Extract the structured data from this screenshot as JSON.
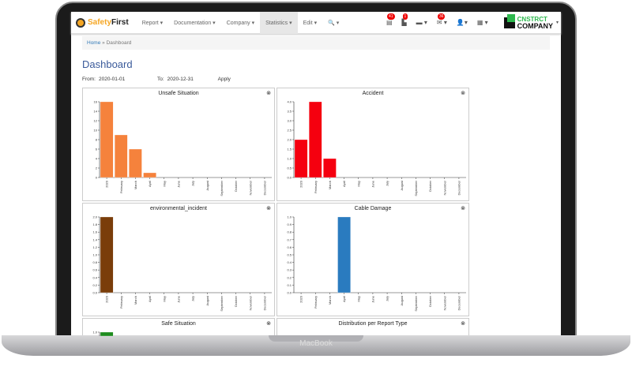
{
  "device_label": "MacBook",
  "logo": {
    "part1": "Safety",
    "part2": "First"
  },
  "nav": [
    {
      "label": "Report ▾"
    },
    {
      "label": "Documentation ▾"
    },
    {
      "label": "Company ▾"
    },
    {
      "label": "Statistics ▾",
      "active": true
    },
    {
      "label": "Edit ▾"
    },
    {
      "label": "🔍 ▾"
    }
  ],
  "icons": [
    {
      "name": "list-icon",
      "glyph": "▤",
      "badge": "41"
    },
    {
      "name": "document-icon",
      "glyph": "▙",
      "badge": "1"
    },
    {
      "name": "chat-icon",
      "glyph": "▬ ▾"
    },
    {
      "name": "mail-icon",
      "glyph": "✉ ▾",
      "badge": "36"
    },
    {
      "name": "user-icon",
      "glyph": "👤▾"
    },
    {
      "name": "uk-flag-icon",
      "glyph": "▦ ▾"
    }
  ],
  "company": {
    "line1": "CNSTRCT",
    "line2": "COMPANY"
  },
  "breadcrumb": {
    "home": "Home",
    "sep": "»",
    "current": "Dashboard"
  },
  "page_title": "Dashboard",
  "filters": {
    "from_label": "From:",
    "from_value": "2020-01-01",
    "to_label": "To:",
    "to_value": "2020-12-31",
    "apply": "Apply"
  },
  "chart_data": [
    {
      "type": "bar",
      "title": "Unsafe Situation",
      "color": "#f5823c",
      "categories": [
        "2020",
        "February",
        "March",
        "April",
        "May",
        "June",
        "July",
        "August",
        "September",
        "October",
        "November",
        "December"
      ],
      "values": [
        16,
        9,
        6,
        1,
        0,
        0,
        0,
        0,
        0,
        0,
        0,
        0
      ],
      "ylim": [
        0,
        16
      ],
      "yticks": [
        "0",
        "2",
        "4",
        "6",
        "8",
        "10",
        "12",
        "14",
        "16"
      ]
    },
    {
      "type": "bar",
      "title": "Accident",
      "color": "#f5000f",
      "categories": [
        "2020",
        "February",
        "March",
        "April",
        "May",
        "June",
        "July",
        "August",
        "September",
        "October",
        "November",
        "December"
      ],
      "values": [
        2,
        4,
        1,
        0,
        0,
        0,
        0,
        0,
        0,
        0,
        0,
        0
      ],
      "ylim": [
        0,
        4
      ],
      "yticks": [
        "0.0",
        "0.5",
        "1.0",
        "1.5",
        "2.0",
        "2.5",
        "3.0",
        "3.5",
        "4.0"
      ]
    },
    {
      "type": "bar",
      "title": "environmental_incident",
      "color": "#7a3d0a",
      "categories": [
        "2020",
        "February",
        "March",
        "April",
        "May",
        "June",
        "July",
        "August",
        "September",
        "October",
        "November",
        "December"
      ],
      "values": [
        2,
        0,
        0,
        0,
        0,
        0,
        0,
        0,
        0,
        0,
        0,
        0
      ],
      "ylim": [
        0,
        2
      ],
      "yticks": [
        "0.0",
        "0.2",
        "0.4",
        "0.6",
        "0.8",
        "1.0",
        "1.2",
        "1.4",
        "1.6",
        "1.8",
        "2.0"
      ]
    },
    {
      "type": "bar",
      "title": "Cable Damage",
      "color": "#2a7bbf",
      "categories": [
        "2020",
        "February",
        "March",
        "April",
        "May",
        "June",
        "July",
        "August",
        "September",
        "October",
        "November",
        "December"
      ],
      "values": [
        0,
        0,
        0,
        1,
        0,
        0,
        0,
        0,
        0,
        0,
        0,
        0
      ],
      "ylim": [
        0,
        1
      ],
      "yticks": [
        "0.0",
        "0.1",
        "0.2",
        "0.3",
        "0.4",
        "0.5",
        "0.6",
        "0.7",
        "0.8",
        "0.9",
        "1.0"
      ]
    },
    {
      "type": "bar",
      "title": "Safe Situation",
      "color": "#1e8c1e",
      "categories": [
        "2020"
      ],
      "values": [
        1
      ],
      "ylim": [
        0,
        1
      ],
      "yticks": [
        "1.0"
      ]
    },
    {
      "type": "pie",
      "title": "Distribution per Report Type"
    }
  ]
}
